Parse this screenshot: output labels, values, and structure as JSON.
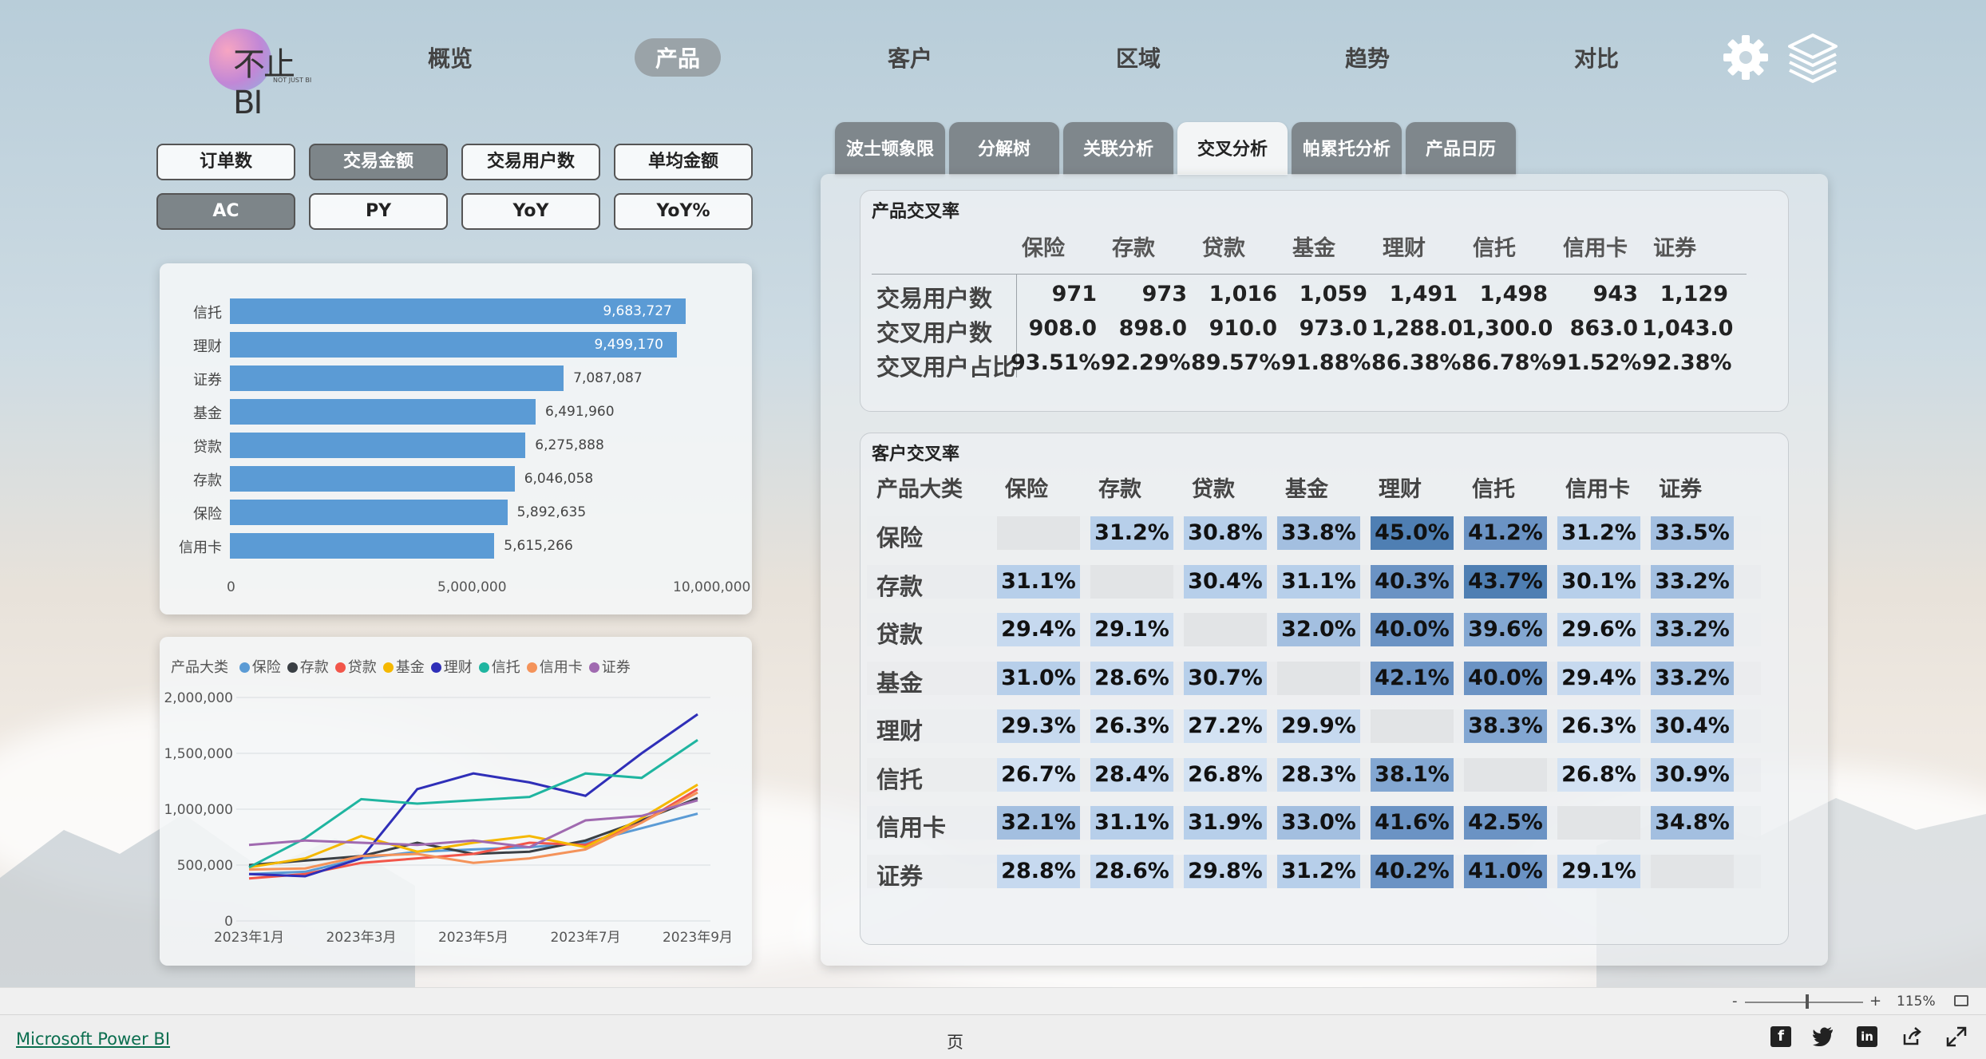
{
  "nav": {
    "logo_text": "不止BI",
    "logo_sub": "NOT JUST BI",
    "items": [
      "概览",
      "产品",
      "客户",
      "区域",
      "趋势",
      "对比"
    ],
    "active": "产品"
  },
  "filters": {
    "measures": [
      "订单数",
      "交易金额",
      "交易用户数",
      "单均金额"
    ],
    "active_measure": "交易金额",
    "periods": [
      "AC",
      "PY",
      "YoY",
      "YoY%"
    ],
    "active_period": "AC"
  },
  "bar_chart": {
    "axis_ticks": [
      "0",
      "5,000,000",
      "10,000,000"
    ],
    "chart_data": {
      "type": "bar",
      "orientation": "horizontal",
      "categories": [
        "信托",
        "理财",
        "证券",
        "基金",
        "贷款",
        "存款",
        "保险",
        "信用卡"
      ],
      "values": [
        9683727,
        9499170,
        7087087,
        6491960,
        6275888,
        6046058,
        5892635,
        5615266
      ],
      "value_labels": [
        "9,683,727",
        "9,499,170",
        "7,087,087",
        "6,491,960",
        "6,275,888",
        "6,046,058",
        "5,892,635",
        "5,615,266"
      ],
      "xlim": [
        0,
        10000000
      ],
      "color": "#5b9bd5"
    }
  },
  "line_chart": {
    "legend_title": "产品大类",
    "y_ticks": [
      "2,000,000",
      "1,500,000",
      "1,000,000",
      "500,000",
      "0"
    ],
    "x_ticks": [
      "2023年1月",
      "2023年3月",
      "2023年5月",
      "2023年7月",
      "2023年9月"
    ],
    "chart_data": {
      "type": "line",
      "x": [
        "2023年1月",
        "2023年2月",
        "2023年3月",
        "2023年4月",
        "2023年5月",
        "2023年6月",
        "2023年7月",
        "2023年8月",
        "2023年9月"
      ],
      "ylim": [
        0,
        2000000
      ],
      "series": [
        {
          "name": "保险",
          "color": "#5b9bd5",
          "values": [
            420000,
            440000,
            560000,
            620000,
            640000,
            660000,
            700000,
            830000,
            960000
          ]
        },
        {
          "name": "存款",
          "color": "#3a3f44",
          "values": [
            500000,
            540000,
            580000,
            700000,
            600000,
            620000,
            720000,
            900000,
            1100000
          ]
        },
        {
          "name": "贷款",
          "color": "#f2564a",
          "values": [
            380000,
            420000,
            520000,
            560000,
            600000,
            700000,
            680000,
            880000,
            1180000
          ]
        },
        {
          "name": "基金",
          "color": "#f5b800",
          "values": [
            480000,
            560000,
            760000,
            620000,
            700000,
            760000,
            660000,
            920000,
            1220000
          ]
        },
        {
          "name": "理财",
          "color": "#2f2fb8",
          "values": [
            420000,
            400000,
            560000,
            1180000,
            1320000,
            1240000,
            1120000,
            1500000,
            1850000
          ]
        },
        {
          "name": "信托",
          "color": "#1fb5a0",
          "values": [
            480000,
            740000,
            1090000,
            1050000,
            1080000,
            1110000,
            1320000,
            1280000,
            1620000
          ]
        },
        {
          "name": "信用卡",
          "color": "#f4935a",
          "values": [
            460000,
            470000,
            580000,
            600000,
            520000,
            560000,
            640000,
            880000,
            1150000
          ]
        },
        {
          "name": "证券",
          "color": "#a06ab0",
          "values": [
            680000,
            720000,
            700000,
            680000,
            720000,
            660000,
            900000,
            940000,
            1080000
          ]
        }
      ]
    }
  },
  "tabs": [
    "波士顿象限",
    "分解树",
    "关联分析",
    "交叉分析",
    "帕累托分析",
    "产品日历"
  ],
  "active_tab": "交叉分析",
  "product_cross": {
    "title": "产品交叉率",
    "columns": [
      "保险",
      "存款",
      "贷款",
      "基金",
      "理财",
      "信托",
      "信用卡",
      "证券"
    ],
    "rows": [
      {
        "label": "交易用户数",
        "values": [
          "971",
          "973",
          "1,016",
          "1,059",
          "1,491",
          "1,498",
          "943",
          "1,129"
        ]
      },
      {
        "label": "交叉用户数",
        "values": [
          "908.0",
          "898.0",
          "910.0",
          "973.0",
          "1,288.0",
          "1,300.0",
          "863.0",
          "1,043.0"
        ]
      },
      {
        "label": "交叉用户占比",
        "values": [
          "93.51%",
          "92.29%",
          "89.57%",
          "91.88%",
          "86.38%",
          "86.78%",
          "91.52%",
          "92.38%"
        ]
      }
    ]
  },
  "customer_cross": {
    "title": "客户交叉率",
    "corner": "产品大类",
    "columns": [
      "保险",
      "存款",
      "贷款",
      "基金",
      "理财",
      "信托",
      "信用卡",
      "证券"
    ],
    "rows": [
      {
        "label": "保险",
        "values": [
          "",
          "31.2%",
          "30.8%",
          "33.8%",
          "45.0%",
          "41.2%",
          "31.2%",
          "33.5%"
        ]
      },
      {
        "label": "存款",
        "values": [
          "31.1%",
          "",
          "30.4%",
          "31.1%",
          "40.3%",
          "43.7%",
          "30.1%",
          "33.2%"
        ]
      },
      {
        "label": "贷款",
        "values": [
          "29.4%",
          "29.1%",
          "",
          "32.0%",
          "40.0%",
          "39.6%",
          "29.6%",
          "33.2%"
        ]
      },
      {
        "label": "基金",
        "values": [
          "31.0%",
          "28.6%",
          "30.7%",
          "",
          "42.1%",
          "40.0%",
          "29.4%",
          "33.2%"
        ]
      },
      {
        "label": "理财",
        "values": [
          "29.3%",
          "26.3%",
          "27.2%",
          "29.9%",
          "",
          "38.3%",
          "26.3%",
          "30.4%"
        ]
      },
      {
        "label": "信托",
        "values": [
          "26.7%",
          "28.4%",
          "26.8%",
          "28.3%",
          "38.1%",
          "",
          "26.8%",
          "30.9%"
        ]
      },
      {
        "label": "信用卡",
        "values": [
          "32.1%",
          "31.1%",
          "31.9%",
          "33.0%",
          "41.6%",
          "42.5%",
          "",
          "34.8%"
        ]
      },
      {
        "label": "证券",
        "values": [
          "28.8%",
          "28.6%",
          "29.8%",
          "31.2%",
          "40.2%",
          "41.0%",
          "29.1%",
          ""
        ]
      }
    ]
  },
  "zoom": {
    "level": "115%",
    "minus": "-",
    "plus": "+"
  },
  "footer": {
    "brand": "Microsoft Power BI",
    "page": "页"
  }
}
